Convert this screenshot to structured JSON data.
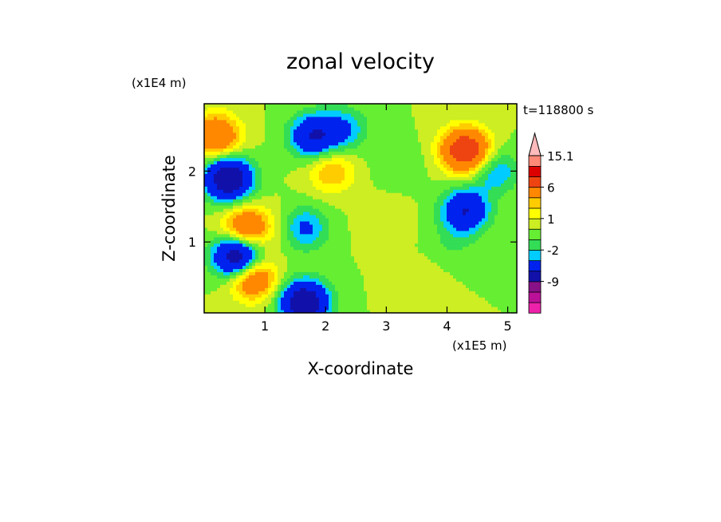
{
  "chart_data": {
    "type": "heatmap",
    "title": "zonal velocity",
    "xlabel": "X-coordinate",
    "ylabel": "Z-coordinate",
    "x_unit": "(x1E5 m)",
    "y_unit": "(x1E4 m)",
    "time_label": "t=118800 s",
    "xlim": [
      0,
      5.15
    ],
    "ylim": [
      0,
      2.95
    ],
    "x_ticks": [
      1,
      2,
      3,
      4,
      5
    ],
    "y_ticks": [
      1,
      2
    ],
    "colorbar": {
      "levels": [
        -15,
        -12,
        -9,
        -6,
        -3,
        -2,
        -1,
        0,
        1,
        2,
        3,
        6,
        9,
        12,
        15.1
      ],
      "colors": [
        "#ee22aa",
        "#bb1199",
        "#881188",
        "#1111aa",
        "#0022ee",
        "#00ccff",
        "#33dd55",
        "#66ee33",
        "#ccee22",
        "#ffff00",
        "#ffcc00",
        "#ff8800",
        "#ee4411",
        "#dd0000",
        "#ff8877",
        "#ffbbbb"
      ],
      "labels": [
        "15.1",
        "6",
        "1",
        "-2",
        "-9"
      ],
      "extend": "max"
    },
    "features": [
      {
        "x": 4.3,
        "z": 2.3,
        "u": 9
      },
      {
        "x": 2.1,
        "z": 2.0,
        "u": 3
      },
      {
        "x": 1.5,
        "z": 1.2,
        "u": 3
      },
      {
        "x": 0.7,
        "z": 1.2,
        "u": 6
      },
      {
        "x": 0.2,
        "z": 2.5,
        "u": 6
      },
      {
        "x": 0.8,
        "z": 0.5,
        "u": 6
      },
      {
        "x": 1.8,
        "z": 2.5,
        "u": -6
      },
      {
        "x": 2.3,
        "z": 2.6,
        "u": -3
      },
      {
        "x": 4.3,
        "z": 1.45,
        "u": -6
      },
      {
        "x": 4.8,
        "z": 2.0,
        "u": -3
      },
      {
        "x": 0.4,
        "z": 1.9,
        "u": -9
      },
      {
        "x": 0.55,
        "z": 0.8,
        "u": -9
      },
      {
        "x": 1.65,
        "z": 0.15,
        "u": -9
      },
      {
        "x": 1.6,
        "z": 1.2,
        "u": -6
      },
      {
        "x": 3.2,
        "z": 2.1,
        "u": -1
      },
      {
        "x": 4.1,
        "z": 1.0,
        "u": -1
      },
      {
        "x": 3.5,
        "z": 0.4,
        "u": 1
      },
      {
        "x": 3.0,
        "z": 1.3,
        "u": 1
      }
    ]
  }
}
